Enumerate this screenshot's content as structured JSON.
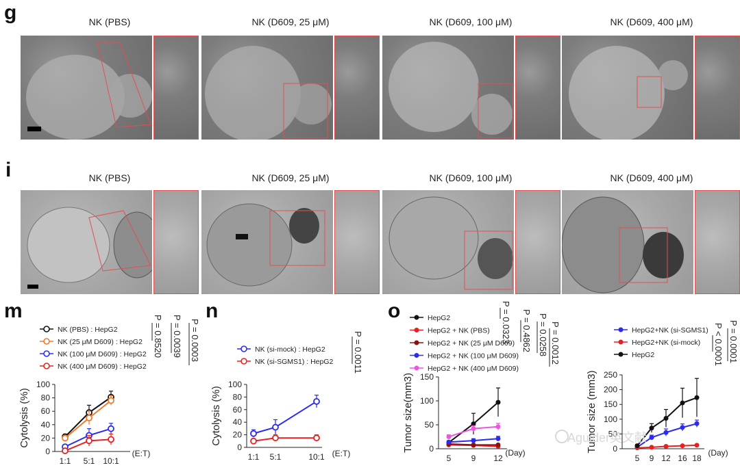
{
  "panels": {
    "g": {
      "letter": "g",
      "titles": [
        "NK (PBS)",
        "NK (D609, 25 μM)",
        "NK (D609, 100 μM)",
        "NK (D609, 400 μM)"
      ]
    },
    "i": {
      "letter": "i",
      "titles": [
        "NK (PBS)",
        "NK (D609, 25 μM)",
        "NK (D609, 100 μM)",
        "NK (D609, 400 μM)"
      ]
    },
    "m": {
      "letter": "m",
      "legend": [
        "NK (PBS) : HepG2",
        "NK (25 μM D609) : HepG2",
        "NK (100 μM D609) : HepG2",
        "NK (400 μM D609) : HepG2"
      ],
      "pvalues": [
        "P = 0.8520",
        "P = 0.0039",
        "P = 0.0003"
      ],
      "ratio_label": "(E:T)"
    },
    "n": {
      "letter": "n",
      "legend": [
        "NK (si-mock) : HepG2",
        "NK (si-SGMS1) : HepG2"
      ],
      "pvalues": [
        "P = 0.0011"
      ],
      "ratio_label": "(E:T)"
    },
    "o": {
      "letter": "o",
      "legend_left": [
        "HepG2",
        "HepG2 + NK (PBS)",
        "HepG2 + NK (25 μM D609)",
        "HepG2 + NK (100 μM D609)",
        "HepG2 + NK (400 μM D609)"
      ],
      "pvalues_left": [
        "P = 0.0323",
        "P = 0.4862",
        "P = 0.0258",
        "P = 0.0012"
      ],
      "legend_right": [
        "HepG2+NK (si-SGMS1)",
        "HepG2+NK (si-mock)",
        "HepG2"
      ],
      "pvalues_right": [
        "P < 0.0001",
        "P = 0.0001"
      ],
      "day_label": "(Day)"
    }
  },
  "colors": {
    "black": "#111111",
    "orange": "#f07a2a",
    "blue": "#2b2bf0",
    "red": "#e82020",
    "darkred": "#8b1010",
    "magenta": "#ee55dd",
    "scale_bar": "#000000",
    "zoom_border": "#e05050"
  },
  "chart_data": [
    {
      "type": "line",
      "panel": "m",
      "x": [
        "1:1",
        "5:1",
        "10:1"
      ],
      "xlabel": "(E:T)",
      "ylabel": "Cytolysis (%)",
      "ylim": [
        0,
        100
      ],
      "yticks": [
        0,
        20,
        40,
        60,
        80,
        100
      ],
      "series": [
        {
          "name": "NK (PBS) : HepG2",
          "values": [
            22,
            58,
            81
          ],
          "err": [
            4,
            11,
            9
          ],
          "color": "#111111",
          "marker": "open"
        },
        {
          "name": "NK (25 μM D609) : HepG2",
          "values": [
            20,
            50,
            76
          ],
          "err": [
            4,
            10,
            7
          ],
          "color": "#f07a2a",
          "marker": "open"
        },
        {
          "name": "NK (100 μM D609) : HepG2",
          "values": [
            7,
            24,
            34
          ],
          "err": [
            3,
            10,
            8
          ],
          "color": "#2b2bf0",
          "marker": "open"
        },
        {
          "name": "NK (400 μM D609) : HepG2",
          "values": [
            1,
            16,
            18
          ],
          "err": [
            2,
            8,
            8
          ],
          "color": "#e82020",
          "marker": "open"
        }
      ]
    },
    {
      "type": "line",
      "panel": "n",
      "x": [
        "1:1",
        "5:1",
        "10:1"
      ],
      "xlabel": "(E:T)",
      "ylabel": "Cytolysis (%)",
      "ylim": [
        0,
        100
      ],
      "yticks": [
        0,
        20,
        40,
        60,
        80,
        100
      ],
      "series": [
        {
          "name": "NK (si-mock) : HepG2",
          "values": [
            22,
            32,
            73
          ],
          "err": [
            6,
            12,
            10
          ],
          "color": "#2b2bf0",
          "marker": "open"
        },
        {
          "name": "NK (si-SGMS1) : HepG2",
          "values": [
            10,
            15,
            15
          ],
          "err": [
            4,
            5,
            5
          ],
          "color": "#e82020",
          "marker": "open"
        }
      ]
    },
    {
      "type": "line",
      "panel": "o-left",
      "x": [
        5,
        9,
        12
      ],
      "xticks": [
        "5",
        "9",
        "12"
      ],
      "xlabel": "(Day)",
      "ylabel": "Tumor size(mm3)",
      "ylim": [
        0,
        150
      ],
      "yticks": [
        0,
        50,
        100,
        150
      ],
      "series": [
        {
          "name": "HepG2",
          "values": [
            13,
            52,
            97
          ],
          "err": [
            3,
            22,
            30
          ],
          "color": "#111111",
          "marker": "filled"
        },
        {
          "name": "HepG2 + NK (PBS)",
          "values": [
            8,
            7,
            5
          ],
          "err": [
            2,
            2,
            2
          ],
          "color": "#e82020",
          "marker": "filled"
        },
        {
          "name": "HepG2 + NK (25 μM D609)",
          "values": [
            10,
            8,
            8
          ],
          "err": [
            2,
            2,
            2
          ],
          "color": "#8b1010",
          "marker": "filled"
        },
        {
          "name": "HepG2 + NK (100 μM D609)",
          "values": [
            14,
            17,
            21
          ],
          "err": [
            3,
            4,
            5
          ],
          "color": "#2b2bf0",
          "marker": "filled"
        },
        {
          "name": "HepG2 + NK (400 μM D609)",
          "values": [
            25,
            42,
            46
          ],
          "err": [
            4,
            6,
            7
          ],
          "color": "#ee55dd",
          "marker": "filled"
        }
      ]
    },
    {
      "type": "line",
      "panel": "o-right",
      "x": [
        5,
        9,
        12,
        16,
        18
      ],
      "xticks": [
        "5",
        "9",
        "12",
        "16",
        "18"
      ],
      "xlabel": "(Day)",
      "ylabel": "Tumor size (mm3)",
      "ylim": [
        0,
        250
      ],
      "yticks": [
        0,
        50,
        100,
        150,
        200,
        250
      ],
      "series": [
        {
          "name": "HepG2+NK (si-SGMS1)",
          "values": [
            5,
            38,
            55,
            72,
            85
          ],
          "err": [
            3,
            8,
            12,
            12,
            12
          ],
          "color": "#2b2bf0",
          "marker": "filled"
        },
        {
          "name": "HepG2+NK (si-mock)",
          "values": [
            3,
            5,
            8,
            10,
            12
          ],
          "err": [
            2,
            2,
            2,
            3,
            3
          ],
          "color": "#e82020",
          "marker": "filled"
        },
        {
          "name": "HepG2",
          "values": [
            10,
            70,
            103,
            155,
            173
          ],
          "err": [
            5,
            15,
            30,
            50,
            65
          ],
          "color": "#111111",
          "marker": "filled"
        }
      ]
    }
  ],
  "watermark": "Aguider英文献"
}
